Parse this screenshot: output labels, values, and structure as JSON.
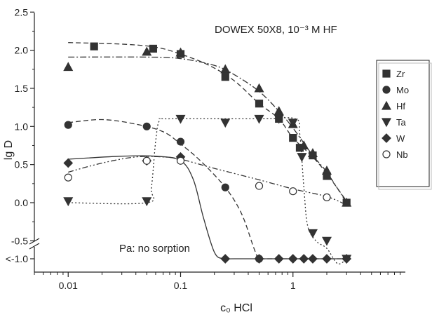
{
  "chart_data": {
    "type": "scatter",
    "title": "DOWEX 50X8, 10⁻³ M HF",
    "annotation": "Pa: no sorption",
    "xlabel": "c₀ HCl",
    "ylabel": "lg D",
    "x_scale": "log",
    "xlim": [
      0.005,
      10
    ],
    "ylim": [
      -1.25,
      2.5
    ],
    "x_ticks": [
      0.01,
      0.1,
      1
    ],
    "x_tick_labels": [
      "0.01",
      "0.1",
      "1"
    ],
    "y_ticks": [
      2.5,
      2.0,
      1.5,
      1.0,
      0.5,
      0.0,
      -0.5,
      -1.0
    ],
    "y_tick_labels": [
      "2.5",
      "2.0",
      "1.5",
      "1.0",
      "0.5",
      "0.0",
      "-0.5",
      "<-1.0"
    ],
    "axis_break": "between -0.5 and <-1.0 on y axis",
    "grid": false,
    "legend_position": "right",
    "series": [
      {
        "name": "Zr",
        "marker": "square",
        "filled": true,
        "line": "dashed",
        "points": [
          [
            0.017,
            2.05
          ],
          [
            0.057,
            2.02
          ],
          [
            0.1,
            1.95
          ],
          [
            0.25,
            1.65
          ],
          [
            0.5,
            1.3
          ],
          [
            0.75,
            1.1
          ],
          [
            1.0,
            0.85
          ],
          [
            1.15,
            0.72
          ],
          [
            1.5,
            0.62
          ],
          [
            2.0,
            0.35
          ],
          [
            3.0,
            0.0
          ]
        ],
        "fit": [
          [
            0.01,
            2.1
          ],
          [
            0.03,
            2.08
          ],
          [
            0.06,
            2.04
          ],
          [
            0.1,
            1.95
          ],
          [
            0.18,
            1.8
          ],
          [
            0.3,
            1.6
          ],
          [
            0.5,
            1.3
          ],
          [
            0.75,
            1.1
          ],
          [
            1.0,
            0.85
          ],
          [
            1.5,
            0.6
          ],
          [
            2.0,
            0.38
          ],
          [
            3.0,
            0.02
          ]
        ]
      },
      {
        "name": "Mo",
        "marker": "circle",
        "filled": true,
        "line": "dashed",
        "points": [
          [
            0.01,
            1.02
          ],
          [
            0.05,
            1.0
          ],
          [
            0.1,
            0.8
          ],
          [
            0.25,
            0.2
          ],
          [
            0.5,
            -1.0
          ]
        ],
        "fit": [
          [
            0.01,
            1.05
          ],
          [
            0.02,
            1.09
          ],
          [
            0.04,
            1.03
          ],
          [
            0.07,
            0.93
          ],
          [
            0.1,
            0.77
          ],
          [
            0.15,
            0.55
          ],
          [
            0.25,
            0.2
          ],
          [
            0.35,
            -0.15
          ],
          [
            0.45,
            -0.6
          ],
          [
            0.5,
            -0.95
          ],
          [
            0.6,
            -1.0
          ],
          [
            3.0,
            -1.0
          ]
        ]
      },
      {
        "name": "Hf",
        "marker": "triangle-up",
        "filled": true,
        "line": "dash-dot",
        "points": [
          [
            0.01,
            1.78
          ],
          [
            0.05,
            1.98
          ],
          [
            0.1,
            1.97
          ],
          [
            0.25,
            1.75
          ],
          [
            0.5,
            1.5
          ],
          [
            0.75,
            1.2
          ],
          [
            1.0,
            1.03
          ],
          [
            1.25,
            0.75
          ],
          [
            1.5,
            0.65
          ],
          [
            2.0,
            0.42
          ],
          [
            3.0,
            0.0
          ]
        ],
        "fit": [
          [
            0.01,
            1.91
          ],
          [
            0.05,
            1.91
          ],
          [
            0.1,
            1.89
          ],
          [
            0.2,
            1.8
          ],
          [
            0.3,
            1.68
          ],
          [
            0.5,
            1.46
          ],
          [
            0.75,
            1.2
          ],
          [
            1.0,
            0.98
          ],
          [
            1.5,
            0.62
          ],
          [
            2.0,
            0.4
          ],
          [
            3.0,
            0.0
          ]
        ]
      },
      {
        "name": "Ta",
        "marker": "triangle-down",
        "filled": true,
        "line": "dotted",
        "points": [
          [
            0.01,
            0.02
          ],
          [
            0.05,
            0.02
          ],
          [
            0.1,
            1.1
          ],
          [
            0.25,
            1.05
          ],
          [
            0.5,
            1.1
          ],
          [
            0.75,
            1.1
          ],
          [
            1.0,
            1.05
          ],
          [
            1.2,
            0.6
          ],
          [
            1.5,
            -0.4
          ],
          [
            2.0,
            -0.5
          ],
          [
            3.0,
            -1.0
          ]
        ],
        "fit": [
          [
            0.01,
            0.0
          ],
          [
            0.05,
            0.0
          ],
          [
            0.055,
            0.2
          ],
          [
            0.06,
            0.8
          ],
          [
            0.065,
            1.08
          ],
          [
            0.08,
            1.1
          ],
          [
            0.5,
            1.1
          ],
          [
            1.05,
            1.1
          ],
          [
            1.15,
            0.9
          ],
          [
            1.25,
            0.2
          ],
          [
            1.35,
            -0.3
          ],
          [
            1.6,
            -0.5
          ],
          [
            2.0,
            -0.6
          ],
          [
            2.5,
            -0.8
          ],
          [
            3.0,
            -1.0
          ]
        ]
      },
      {
        "name": "W",
        "marker": "diamond",
        "filled": true,
        "line": "solid",
        "points": [
          [
            0.01,
            0.52
          ],
          [
            0.05,
            0.55
          ],
          [
            0.1,
            0.6
          ],
          [
            0.25,
            -1.0
          ],
          [
            0.5,
            -1.0
          ],
          [
            0.75,
            -1.0
          ],
          [
            1.0,
            -1.0
          ],
          [
            1.25,
            -1.0
          ],
          [
            1.5,
            -1.0
          ],
          [
            2.0,
            -1.0
          ],
          [
            3.0,
            -1.0
          ]
        ],
        "fit": [
          [
            0.01,
            0.57
          ],
          [
            0.03,
            0.61
          ],
          [
            0.06,
            0.61
          ],
          [
            0.1,
            0.55
          ],
          [
            0.13,
            0.3
          ],
          [
            0.16,
            -0.2
          ],
          [
            0.2,
            -0.65
          ],
          [
            0.24,
            -0.95
          ],
          [
            0.3,
            -1.0
          ],
          [
            3.0,
            -1.0
          ]
        ]
      },
      {
        "name": "Nb",
        "marker": "circle",
        "filled": false,
        "line": "dash-dot-dot",
        "points": [
          [
            0.01,
            0.33
          ],
          [
            0.05,
            0.55
          ],
          [
            0.1,
            0.55
          ],
          [
            0.5,
            0.22
          ],
          [
            1.0,
            0.15
          ],
          [
            2.0,
            0.07
          ]
        ],
        "fit": [
          [
            0.01,
            0.4
          ],
          [
            0.02,
            0.52
          ],
          [
            0.04,
            0.6
          ],
          [
            0.07,
            0.6
          ],
          [
            0.1,
            0.57
          ],
          [
            0.2,
            0.45
          ],
          [
            0.5,
            0.3
          ],
          [
            1.0,
            0.18
          ],
          [
            2.0,
            0.08
          ],
          [
            3.0,
            -0.03
          ]
        ]
      }
    ]
  }
}
